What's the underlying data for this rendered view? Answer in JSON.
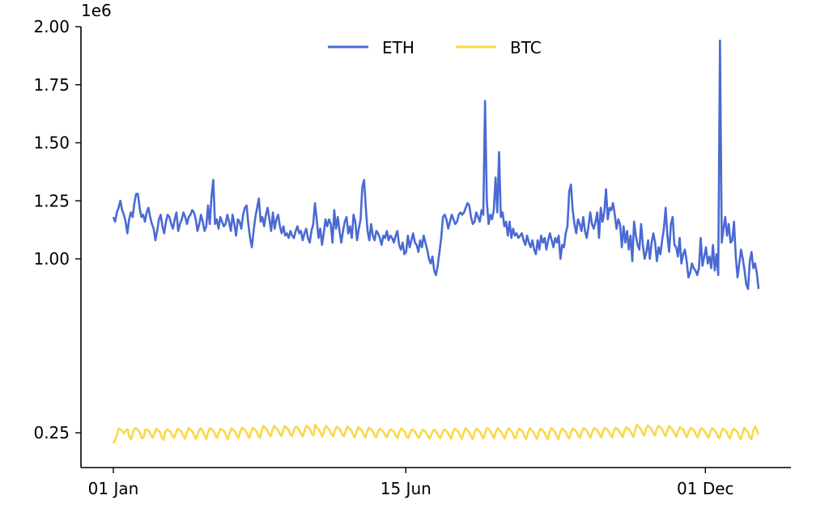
{
  "chart_data": {
    "type": "line",
    "offset_label": "1e6",
    "x_ticks": [
      "01 Jan",
      "15 Jun",
      "01 Dec"
    ],
    "y_ticks": [
      "0.25",
      "1.00",
      "1.25",
      "1.50",
      "1.75",
      "2.00"
    ],
    "ylim": [
      0.2,
      2.0
    ],
    "legend_position": "top-center",
    "grid": false,
    "series": [
      {
        "name": "ETH",
        "color": "#4a6ad3",
        "start": "2022-01-01",
        "end": "2022-12-31",
        "values": [
          1.18,
          1.16,
          1.2,
          1.22,
          1.25,
          1.21,
          1.19,
          1.16,
          1.11,
          1.17,
          1.2,
          1.18,
          1.24,
          1.28,
          1.28,
          1.22,
          1.18,
          1.19,
          1.16,
          1.2,
          1.22,
          1.18,
          1.15,
          1.13,
          1.08,
          1.12,
          1.17,
          1.19,
          1.14,
          1.11,
          1.16,
          1.19,
          1.18,
          1.15,
          1.13,
          1.17,
          1.2,
          1.12,
          1.15,
          1.17,
          1.2,
          1.18,
          1.15,
          1.18,
          1.19,
          1.21,
          1.2,
          1.17,
          1.12,
          1.15,
          1.19,
          1.16,
          1.12,
          1.14,
          1.23,
          1.15,
          1.27,
          1.34,
          1.15,
          1.17,
          1.13,
          1.18,
          1.16,
          1.14,
          1.15,
          1.19,
          1.16,
          1.12,
          1.19,
          1.15,
          1.1,
          1.17,
          1.16,
          1.13,
          1.19,
          1.22,
          1.23,
          1.15,
          1.09,
          1.05,
          1.12,
          1.18,
          1.22,
          1.26,
          1.16,
          1.18,
          1.14,
          1.19,
          1.22,
          1.17,
          1.12,
          1.2,
          1.13,
          1.17,
          1.19,
          1.14,
          1.11,
          1.14,
          1.1,
          1.11,
          1.09,
          1.12,
          1.1,
          1.09,
          1.12,
          1.14,
          1.11,
          1.12,
          1.08,
          1.11,
          1.13,
          1.09,
          1.07,
          1.12,
          1.15,
          1.24,
          1.17,
          1.09,
          1.13,
          1.06,
          1.11,
          1.17,
          1.14,
          1.17,
          1.15,
          1.07,
          1.21,
          1.13,
          1.18,
          1.12,
          1.07,
          1.12,
          1.16,
          1.18,
          1.11,
          1.14,
          1.09,
          1.19,
          1.16,
          1.08,
          1.13,
          1.17,
          1.31,
          1.34,
          1.22,
          1.12,
          1.08,
          1.15,
          1.1,
          1.08,
          1.12,
          1.11,
          1.09,
          1.06,
          1.1,
          1.09,
          1.12,
          1.08,
          1.1,
          1.09,
          1.07,
          1.1,
          1.12,
          1.06,
          1.04,
          1.07,
          1.02,
          1.03,
          1.1,
          1.05,
          1.08,
          1.11,
          1.07,
          1.06,
          1.03,
          1.08,
          1.05,
          1.1,
          1.07,
          1.04,
          1.0,
          0.98,
          1.01,
          0.95,
          0.93,
          0.97,
          1.03,
          1.09,
          1.18,
          1.19,
          1.17,
          1.13,
          1.16,
          1.19,
          1.17,
          1.15,
          1.16,
          1.19,
          1.2,
          1.19,
          1.2,
          1.22,
          1.24,
          1.23,
          1.18,
          1.15,
          1.16,
          1.2,
          1.18,
          1.16,
          1.21,
          1.19,
          1.68,
          1.25,
          1.15,
          1.19,
          1.17,
          1.21,
          1.35,
          1.2,
          1.46,
          1.18,
          1.2,
          1.14,
          1.16,
          1.1,
          1.16,
          1.09,
          1.13,
          1.1,
          1.11,
          1.09,
          1.1,
          1.11,
          1.08,
          1.06,
          1.1,
          1.07,
          1.05,
          1.08,
          1.04,
          1.02,
          1.08,
          1.04,
          1.1,
          1.07,
          1.09,
          1.04,
          1.08,
          1.11,
          1.08,
          1.05,
          1.09,
          1.07,
          1.1,
          1.0,
          1.06,
          1.05,
          1.11,
          1.14,
          1.29,
          1.32,
          1.21,
          1.15,
          1.11,
          1.17,
          1.15,
          1.12,
          1.18,
          1.12,
          1.09,
          1.14,
          1.2,
          1.15,
          1.13,
          1.16,
          1.2,
          1.09,
          1.22,
          1.16,
          1.2,
          1.3,
          1.17,
          1.22,
          1.21,
          1.24,
          1.19,
          1.13,
          1.17,
          1.15,
          1.05,
          1.14,
          1.07,
          1.12,
          1.04,
          1.1,
          0.99,
          1.16,
          1.1,
          1.06,
          1.04,
          1.15,
          1.06,
          1.0,
          1.03,
          1.08,
          1.0,
          1.07,
          1.11,
          1.07,
          0.99,
          1.05,
          1.02,
          1.08,
          1.13,
          1.22,
          1.1,
          1.03,
          1.15,
          1.18,
          1.06,
          1.05,
          1.01,
          1.09,
          0.98,
          1.02,
          1.04,
          0.99,
          0.92,
          0.94,
          0.98,
          0.96,
          0.95,
          0.93,
          0.96,
          1.09,
          0.97,
          1.01,
          1.05,
          0.98,
          1.01,
          0.96,
          1.06,
          0.95,
          1.02,
          0.93,
          1.94,
          1.07,
          1.13,
          1.18,
          1.1,
          1.15,
          1.07,
          1.08,
          1.16,
          1.01,
          0.92,
          0.98,
          1.04,
          1.0,
          0.95,
          0.89,
          0.87,
          0.99,
          1.03,
          0.96,
          0.98,
          0.94,
          0.87
        ]
      },
      {
        "name": "BTC",
        "color": "#f7d948",
        "start": "2022-01-01",
        "end": "2022-12-31",
        "values": [
          0.205,
          0.218,
          0.24,
          0.268,
          0.265,
          0.255,
          0.248,
          0.26,
          0.265,
          0.232,
          0.222,
          0.252,
          0.27,
          0.268,
          0.26,
          0.247,
          0.225,
          0.232,
          0.264,
          0.262,
          0.258,
          0.24,
          0.228,
          0.246,
          0.268,
          0.26,
          0.255,
          0.232,
          0.22,
          0.253,
          0.265,
          0.26,
          0.254,
          0.238,
          0.228,
          0.248,
          0.268,
          0.262,
          0.257,
          0.24,
          0.225,
          0.249,
          0.27,
          0.264,
          0.258,
          0.243,
          0.224,
          0.238,
          0.262,
          0.27,
          0.256,
          0.24,
          0.223,
          0.252,
          0.27,
          0.265,
          0.258,
          0.241,
          0.227,
          0.249,
          0.267,
          0.262,
          0.258,
          0.237,
          0.222,
          0.246,
          0.269,
          0.263,
          0.256,
          0.241,
          0.227,
          0.255,
          0.272,
          0.266,
          0.26,
          0.243,
          0.227,
          0.252,
          0.272,
          0.264,
          0.258,
          0.24,
          0.228,
          0.258,
          0.28,
          0.27,
          0.262,
          0.246,
          0.234,
          0.26,
          0.28,
          0.27,
          0.265,
          0.247,
          0.236,
          0.26,
          0.279,
          0.27,
          0.264,
          0.244,
          0.235,
          0.26,
          0.276,
          0.272,
          0.262,
          0.248,
          0.234,
          0.258,
          0.28,
          0.275,
          0.266,
          0.245,
          0.238,
          0.285,
          0.27,
          0.264,
          0.248,
          0.233,
          0.262,
          0.28,
          0.27,
          0.262,
          0.245,
          0.235,
          0.262,
          0.276,
          0.27,
          0.262,
          0.243,
          0.235,
          0.258,
          0.277,
          0.268,
          0.262,
          0.243,
          0.23,
          0.252,
          0.275,
          0.266,
          0.26,
          0.242,
          0.23,
          0.255,
          0.272,
          0.266,
          0.26,
          0.24,
          0.23,
          0.252,
          0.268,
          0.262,
          0.255,
          0.24,
          0.23,
          0.25,
          0.265,
          0.26,
          0.255,
          0.238,
          0.228,
          0.252,
          0.268,
          0.262,
          0.255,
          0.235,
          0.227,
          0.25,
          0.265,
          0.26,
          0.252,
          0.237,
          0.228,
          0.246,
          0.262,
          0.26,
          0.25,
          0.236,
          0.225,
          0.244,
          0.26,
          0.262,
          0.25,
          0.236,
          0.226,
          0.248,
          0.264,
          0.26,
          0.252,
          0.236,
          0.224,
          0.252,
          0.268,
          0.262,
          0.254,
          0.238,
          0.224,
          0.25,
          0.27,
          0.262,
          0.254,
          0.236,
          0.223,
          0.248,
          0.268,
          0.262,
          0.255,
          0.24,
          0.225,
          0.25,
          0.27,
          0.265,
          0.256,
          0.24,
          0.226,
          0.252,
          0.27,
          0.262,
          0.255,
          0.238,
          0.225,
          0.252,
          0.27,
          0.262,
          0.255,
          0.236,
          0.225,
          0.25,
          0.268,
          0.262,
          0.254,
          0.236,
          0.223,
          0.25,
          0.27,
          0.262,
          0.254,
          0.236,
          0.224,
          0.25,
          0.268,
          0.262,
          0.253,
          0.237,
          0.223,
          0.25,
          0.27,
          0.264,
          0.254,
          0.237,
          0.223,
          0.25,
          0.268,
          0.262,
          0.255,
          0.237,
          0.226,
          0.25,
          0.268,
          0.263,
          0.256,
          0.24,
          0.228,
          0.252,
          0.27,
          0.265,
          0.258,
          0.241,
          0.228,
          0.255,
          0.27,
          0.264,
          0.258,
          0.242,
          0.23,
          0.257,
          0.272,
          0.266,
          0.258,
          0.243,
          0.23,
          0.256,
          0.272,
          0.266,
          0.258,
          0.243,
          0.232,
          0.26,
          0.274,
          0.267,
          0.26,
          0.245,
          0.232,
          0.262,
          0.285,
          0.275,
          0.268,
          0.25,
          0.238,
          0.265,
          0.282,
          0.274,
          0.268,
          0.25,
          0.238,
          0.265,
          0.28,
          0.274,
          0.266,
          0.248,
          0.235,
          0.262,
          0.279,
          0.27,
          0.262,
          0.246,
          0.232,
          0.258,
          0.275,
          0.268,
          0.262,
          0.244,
          0.232,
          0.256,
          0.272,
          0.266,
          0.258,
          0.242,
          0.23,
          0.255,
          0.27,
          0.264,
          0.256,
          0.24,
          0.228,
          0.254,
          0.27,
          0.262,
          0.255,
          0.238,
          0.226,
          0.25,
          0.268,
          0.262,
          0.255,
          0.238,
          0.226,
          0.25,
          0.268,
          0.262,
          0.255,
          0.236,
          0.222,
          0.248,
          0.272,
          0.262,
          0.254,
          0.232,
          0.222,
          0.258,
          0.278,
          0.262,
          0.242
        ]
      }
    ]
  }
}
